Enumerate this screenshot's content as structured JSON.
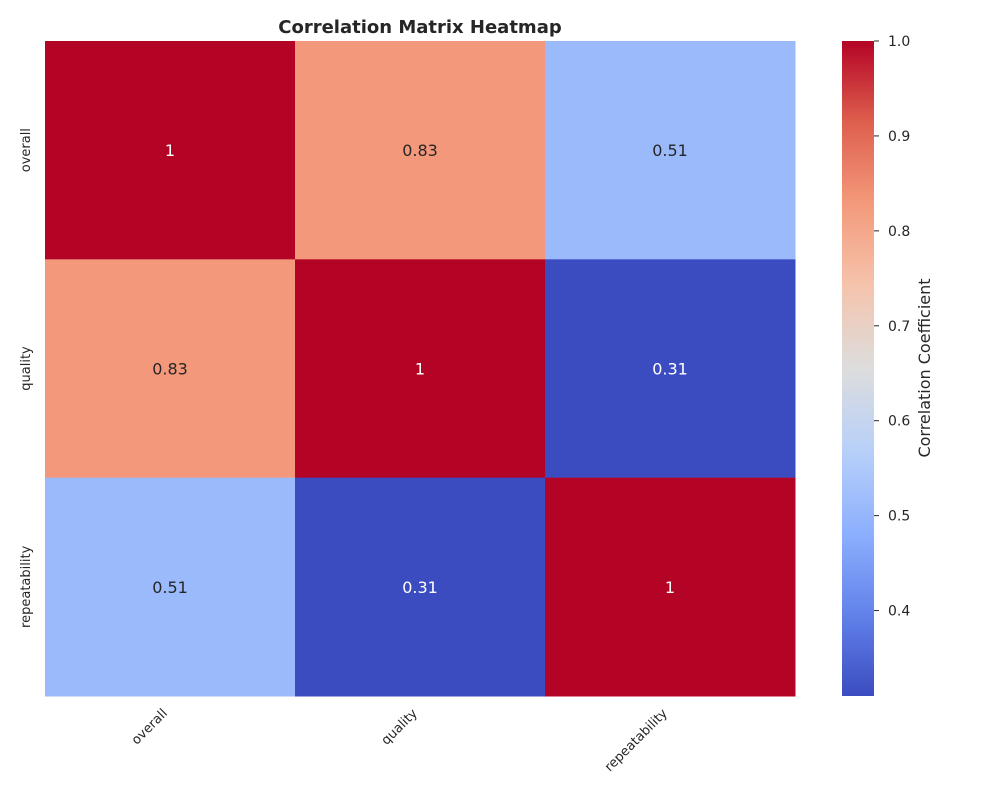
{
  "chart_data": {
    "type": "heatmap",
    "title": "Correlation Matrix Heatmap",
    "xlabel": "",
    "ylabel": "",
    "x_categories": [
      "overall",
      "quality",
      "repeatability"
    ],
    "y_categories": [
      "overall",
      "quality",
      "repeatability"
    ],
    "values": [
      [
        1,
        0.83,
        0.51
      ],
      [
        0.83,
        1,
        0.31
      ],
      [
        0.51,
        0.31,
        1
      ]
    ],
    "annotations": [
      [
        "1",
        "0.83",
        "0.51"
      ],
      [
        "0.83",
        "1",
        "0.31"
      ],
      [
        "0.51",
        "0.31",
        "1"
      ]
    ],
    "colormap": "coolwarm",
    "color_range": [
      0.31,
      1.0
    ],
    "colorbar": {
      "label": "Correlation Coefficient",
      "ticks": [
        0.4,
        0.5,
        0.6,
        0.7,
        0.8,
        0.9,
        1.0
      ],
      "tick_labels": [
        "0.4",
        "0.5",
        "0.6",
        "0.7",
        "0.8",
        "0.9",
        "1.0"
      ]
    },
    "grid": false,
    "legend": "colorbar-right"
  }
}
